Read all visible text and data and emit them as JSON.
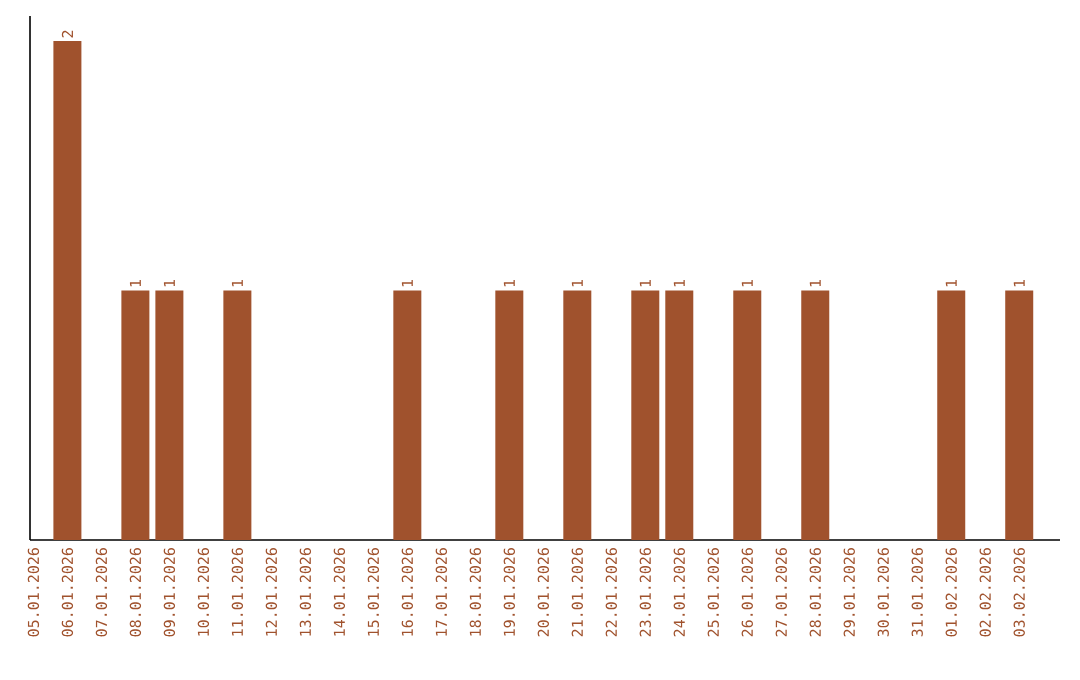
{
  "chart_data": {
    "type": "bar",
    "categories": [
      "05.01.2026",
      "06.01.2026",
      "07.01.2026",
      "08.01.2026",
      "09.01.2026",
      "10.01.2026",
      "11.01.2026",
      "12.01.2026",
      "13.01.2026",
      "14.01.2026",
      "15.01.2026",
      "16.01.2026",
      "17.01.2026",
      "18.01.2026",
      "19.01.2026",
      "20.01.2026",
      "21.01.2026",
      "22.01.2026",
      "23.01.2026",
      "24.01.2026",
      "25.01.2026",
      "26.01.2026",
      "27.01.2026",
      "28.01.2026",
      "29.01.2026",
      "30.01.2026",
      "31.01.2026",
      "01.02.2026",
      "02.02.2026",
      "03.02.2026"
    ],
    "values": [
      0,
      2,
      0,
      1,
      1,
      0,
      1,
      0,
      0,
      0,
      0,
      1,
      0,
      0,
      1,
      0,
      1,
      0,
      1,
      1,
      0,
      1,
      0,
      1,
      0,
      0,
      0,
      1,
      0,
      1
    ],
    "value_labels": [
      null,
      "2",
      null,
      "1",
      "1",
      null,
      "1",
      null,
      null,
      null,
      null,
      "1",
      null,
      null,
      "1",
      null,
      "1",
      null,
      "1",
      "1",
      null,
      "1",
      null,
      "1",
      null,
      null,
      null,
      "1",
      null,
      "1"
    ],
    "color": "#a0522d"
  }
}
